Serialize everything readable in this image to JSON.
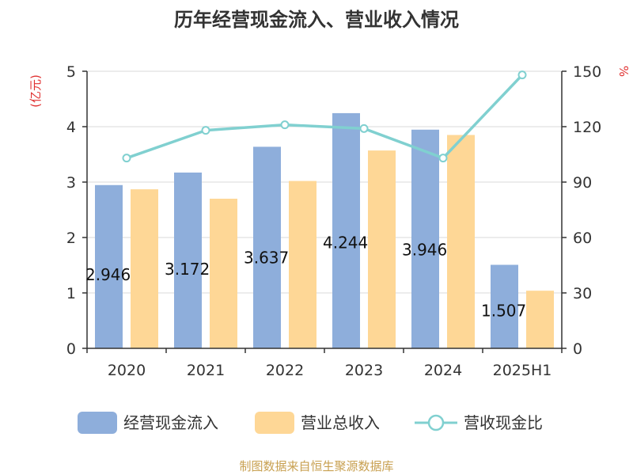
{
  "colors": {
    "bar1": "#8eaedb",
    "bar2": "#fed796",
    "line": "#80d0d0",
    "unit": "#e03030",
    "source": "#c8a050",
    "grid": "#d9d9d9",
    "axis": "#333333"
  },
  "chart_data": {
    "type": "bar",
    "title": "历年经营现金流入、营业收入情况",
    "categories": [
      "2020",
      "2021",
      "2022",
      "2023",
      "2024",
      "2025H1"
    ],
    "left_axis": {
      "unit": "(亿元)",
      "ylim": [
        0,
        5
      ],
      "ticks": [
        "0",
        "1",
        "2",
        "3",
        "4",
        "5"
      ]
    },
    "right_axis": {
      "unit": "%",
      "ylim": [
        0,
        150
      ],
      "ticks": [
        "0",
        "30",
        "60",
        "90",
        "120",
        "150"
      ]
    },
    "series": [
      {
        "name": "经营现金流入",
        "type": "bar",
        "axis": "left",
        "values": [
          2.946,
          3.172,
          3.637,
          4.244,
          3.946,
          1.507
        ],
        "labels": [
          "2.946",
          "3.172",
          "3.637",
          "4.244",
          "3.946",
          "1.507"
        ]
      },
      {
        "name": "营业总收入",
        "type": "bar",
        "axis": "left",
        "values": [
          2.87,
          2.7,
          3.02,
          3.57,
          3.85,
          1.04
        ]
      },
      {
        "name": "营收现金比",
        "type": "line",
        "axis": "right",
        "values": [
          103,
          118,
          121,
          119,
          103,
          148
        ]
      }
    ],
    "legend_position": "bottom",
    "source": "制图数据来自恒生聚源数据库"
  }
}
